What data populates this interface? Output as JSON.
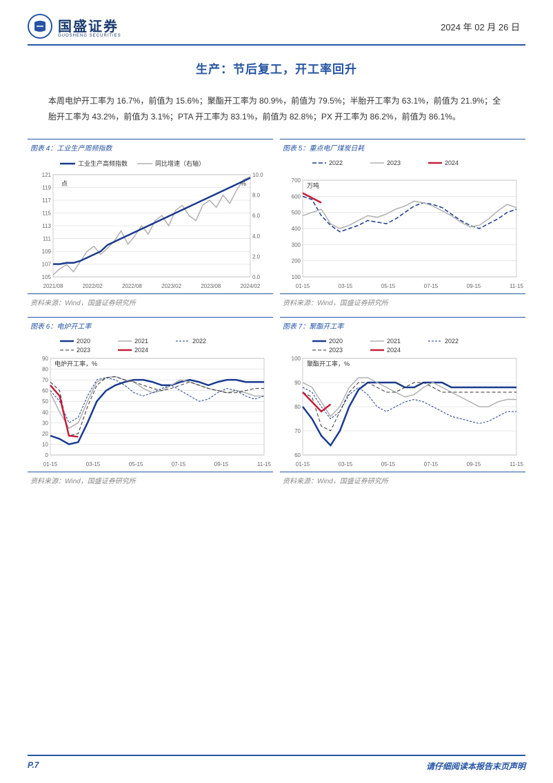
{
  "header": {
    "company_name": "国盛证券",
    "company_sub": "GUOSHENG SECURITIES",
    "date": "2024 年 02 月 26 日",
    "logo_bg": "#2654a3"
  },
  "section_title": "生产：节后复工，开工率回升",
  "body_text": "本周电炉开工率为 16.7%，前值为 15.6%；聚酯开工率为 80.9%，前值为 79.5%；半胎开工率为 63.1%，前值为 21.9%；全胎开工率为 43.2%，前值为 3.1%；PTA 开工率为 83.1%，前值为 82.8%；PX 开工率为 86.2%，前值为 86.1%。",
  "source_text": "资料来源：Wind，国盛证券研究所",
  "chart4": {
    "title": "图表 4：工业生产周频指数",
    "type": "line",
    "unit_left": "点",
    "unit_right": "%",
    "x_labels": [
      "2021/08",
      "2022/02",
      "2022/08",
      "2023/02",
      "2023/08",
      "2024/02"
    ],
    "y_left": {
      "min": 105,
      "max": 121,
      "step": 2
    },
    "y_right": {
      "min": 0.0,
      "max": 10.0,
      "step": 2.0
    },
    "legend": [
      {
        "label": "工业生产高频指数",
        "color": "#1a3a8e",
        "dash": "none",
        "width": 2.5
      },
      {
        "label": "同比增速（右轴）",
        "color": "#b0b0b0",
        "dash": "none",
        "width": 1.5
      }
    ],
    "series_index": [
      107,
      107,
      107.2,
      107.2,
      107.5,
      108,
      108.5,
      109,
      110,
      110.5,
      111,
      111.5,
      112,
      112.5,
      113,
      113.5,
      114,
      114.5,
      115,
      115.5,
      116,
      116.5,
      117,
      117.5,
      118,
      118.5,
      119,
      119.5,
      120,
      120.5
    ],
    "series_yoy": [
      0.2,
      0.8,
      1.2,
      0.5,
      1.5,
      2.5,
      3,
      2.2,
      2.8,
      3.5,
      4.5,
      3.2,
      4,
      5,
      4.2,
      5.5,
      6,
      5,
      6.5,
      7,
      6,
      5.5,
      7,
      7.5,
      6.8,
      8,
      7.2,
      8.5,
      9.5,
      9.8
    ],
    "grid_color": "#d0d0d0"
  },
  "chart5": {
    "title": "图表 5：重点电厂煤炭日耗",
    "type": "line",
    "unit": "万吨",
    "x_labels": [
      "01-15",
      "03-15",
      "05-15",
      "07-15",
      "09-15",
      "11-15"
    ],
    "y": {
      "min": 100,
      "max": 700,
      "step": 100
    },
    "legend": [
      {
        "label": "2022",
        "color": "#1a3a8e",
        "dash": "6,3",
        "width": 1.5
      },
      {
        "label": "2023",
        "color": "#b0b0b0",
        "dash": "none",
        "width": 1.5
      },
      {
        "label": "2024",
        "color": "#c41e3a",
        "dash": "none",
        "width": 2.5
      }
    ],
    "series_2022": [
      600,
      580,
      480,
      420,
      380,
      400,
      420,
      450,
      440,
      430,
      460,
      500,
      540,
      560,
      550,
      530,
      490,
      450,
      420,
      400,
      430,
      460,
      500,
      520
    ],
    "series_2023": [
      480,
      500,
      520,
      430,
      400,
      420,
      450,
      480,
      470,
      490,
      520,
      540,
      570,
      560,
      540,
      510,
      480,
      440,
      410,
      420,
      460,
      510,
      550,
      530
    ],
    "series_2024": [
      620,
      590,
      560
    ],
    "grid_color": "#d0d0d0"
  },
  "chart6": {
    "title": "图表 6：电炉开工率",
    "type": "line",
    "unit": "电炉开工率，%",
    "x_labels": [
      "01-15",
      "03-15",
      "05-15",
      "07-15",
      "09-15",
      "11-15"
    ],
    "y": {
      "min": 0,
      "max": 90,
      "step": 10
    },
    "legend": [
      {
        "label": "2020",
        "color": "#1a3a8e",
        "dash": "none",
        "width": 2.5
      },
      {
        "label": "2021",
        "color": "#b0b0b0",
        "dash": "none",
        "width": 1.5
      },
      {
        "label": "2022",
        "color": "#1a3a8e",
        "dash": "3,2",
        "width": 1
      },
      {
        "label": "2023",
        "color": "#333",
        "dash": "5,3",
        "width": 1
      },
      {
        "label": "2024",
        "color": "#c41e3a",
        "dash": "none",
        "width": 2.5
      }
    ],
    "series_2020": [
      18,
      15,
      10,
      12,
      30,
      50,
      60,
      65,
      68,
      70,
      70,
      68,
      65,
      65,
      68,
      70,
      68,
      65,
      68,
      70,
      70,
      68,
      68,
      68
    ],
    "series_2021": [
      58,
      40,
      25,
      30,
      50,
      68,
      72,
      73,
      70,
      68,
      62,
      58,
      60,
      65,
      70,
      68,
      65,
      62,
      60,
      58,
      60,
      58,
      55,
      55
    ],
    "series_2022": [
      60,
      50,
      30,
      35,
      55,
      70,
      72,
      70,
      65,
      58,
      55,
      58,
      62,
      65,
      60,
      55,
      50,
      52,
      58,
      62,
      60,
      55,
      52,
      55
    ],
    "series_2023": [
      68,
      60,
      18,
      20,
      45,
      65,
      72,
      73,
      70,
      68,
      65,
      62,
      60,
      62,
      65,
      68,
      65,
      62,
      60,
      58,
      58,
      60,
      62,
      62
    ],
    "series_2024": [
      65,
      55,
      18,
      17
    ],
    "grid_color": "#d0d0d0"
  },
  "chart7": {
    "title": "图表 7：聚酯开工率",
    "type": "line",
    "unit": "聚酯开工率，%",
    "x_labels": [
      "01-15",
      "03-15",
      "05-15",
      "07-15",
      "09-15",
      "11-15"
    ],
    "y": {
      "min": 60,
      "max": 100,
      "step": 10
    },
    "legend": [
      {
        "label": "2020",
        "color": "#1a3a8e",
        "dash": "none",
        "width": 2.5
      },
      {
        "label": "2021",
        "color": "#b0b0b0",
        "dash": "none",
        "width": 1.5
      },
      {
        "label": "2022",
        "color": "#1a3a8e",
        "dash": "3,2",
        "width": 1
      },
      {
        "label": "2023",
        "color": "#333",
        "dash": "5,3",
        "width": 1
      },
      {
        "label": "2024",
        "color": "#c41e3a",
        "dash": "none",
        "width": 2.5
      }
    ],
    "series_2020": [
      80,
      75,
      68,
      64,
      70,
      80,
      87,
      90,
      90,
      90,
      90,
      88,
      88,
      90,
      90,
      90,
      88,
      88,
      88,
      88,
      88,
      88,
      88,
      88
    ],
    "series_2021": [
      90,
      88,
      82,
      76,
      80,
      88,
      92,
      92,
      90,
      88,
      86,
      84,
      85,
      88,
      90,
      88,
      86,
      84,
      82,
      80,
      80,
      82,
      83,
      83
    ],
    "series_2022": [
      88,
      86,
      80,
      75,
      78,
      85,
      88,
      85,
      80,
      78,
      80,
      82,
      83,
      82,
      80,
      78,
      76,
      75,
      74,
      73,
      74,
      76,
      78,
      78
    ],
    "series_2023": [
      86,
      84,
      72,
      70,
      78,
      86,
      90,
      90,
      88,
      86,
      86,
      88,
      90,
      90,
      88,
      86,
      86,
      86,
      86,
      86,
      86,
      86,
      86,
      86
    ],
    "series_2024": [
      86,
      82,
      78,
      81
    ],
    "grid_color": "#d0d0d0"
  },
  "footer": {
    "page": "P.7",
    "note": "请仔细阅读本报告末页声明"
  }
}
